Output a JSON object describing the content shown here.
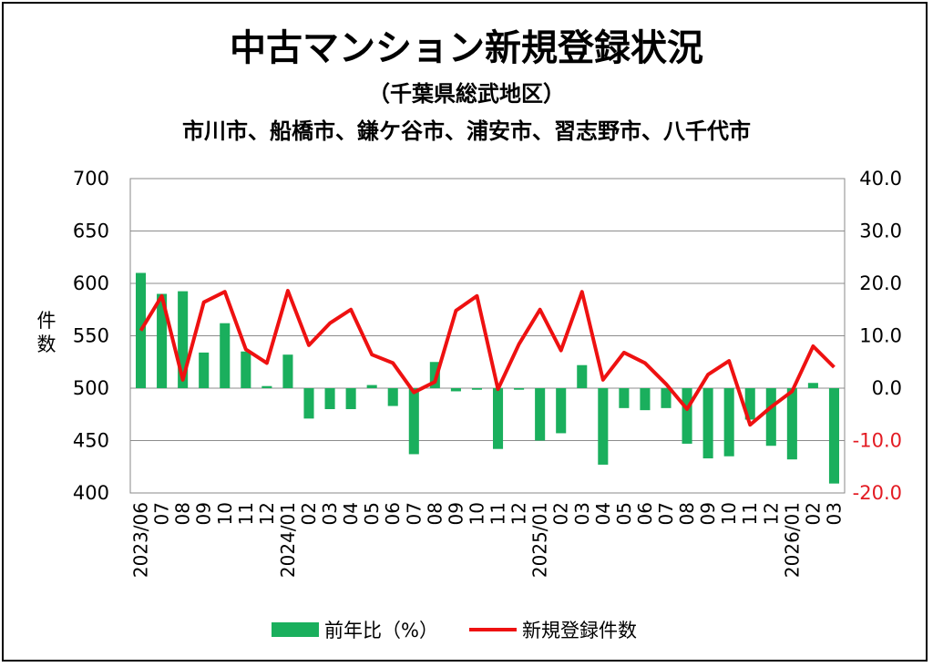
{
  "chart_data": {
    "type": "bar+line",
    "title": "中古マンション新規登録状況",
    "subtitle_1": "（千葉県総武地区）",
    "subtitle_2": "市川市、船橋市、鎌ケ谷市、浦安市、習志野市、八千代市",
    "ylabel_left": "件数",
    "y_left_ticks": [
      "700",
      "650",
      "600",
      "550",
      "500",
      "450",
      "400"
    ],
    "y_left_range": [
      400,
      700
    ],
    "y_right_ticks": [
      "40.0",
      "30.0",
      "20.0",
      "10.0",
      "0.0",
      "-10.0",
      "-20.0"
    ],
    "y_right_range": [
      -20,
      40
    ],
    "categories": [
      "2023/06",
      "07",
      "08",
      "09",
      "10",
      "11",
      "12",
      "2024/01",
      "02",
      "03",
      "04",
      "05",
      "06",
      "07",
      "08",
      "09",
      "10",
      "11",
      "12",
      "2025/01",
      "02",
      "03",
      "04",
      "05",
      "06",
      "07",
      "08",
      "09",
      "10",
      "11",
      "12",
      "2026/01",
      "02",
      "03"
    ],
    "series": [
      {
        "name": "前年比（%）",
        "type": "bar",
        "axis": "right",
        "color": "#1aaf5d",
        "values": [
          22.0,
          18.0,
          18.5,
          6.8,
          12.4,
          7.0,
          0.4,
          6.4,
          -5.8,
          -4.0,
          -4.0,
          0.6,
          -3.4,
          -12.6,
          5.0,
          -0.6,
          -0.3,
          -11.6,
          -0.3,
          -10.0,
          -8.6,
          4.4,
          -14.6,
          -3.8,
          -4.2,
          -3.8,
          -10.6,
          -13.4,
          -13.0,
          -6.0,
          -11.0,
          -13.6,
          1.0,
          -18.2
        ]
      },
      {
        "name": "新規登録件数",
        "type": "line",
        "axis": "left",
        "color": "#ee1111",
        "values": [
          555,
          588,
          508,
          582,
          592,
          537,
          524,
          593,
          541,
          562,
          575,
          532,
          524,
          496,
          506,
          574,
          588,
          499,
          542,
          575,
          536,
          592,
          508,
          534,
          524,
          504,
          480,
          513,
          526,
          465,
          482,
          497,
          540,
          520
        ]
      }
    ],
    "legend_position": "bottom"
  }
}
